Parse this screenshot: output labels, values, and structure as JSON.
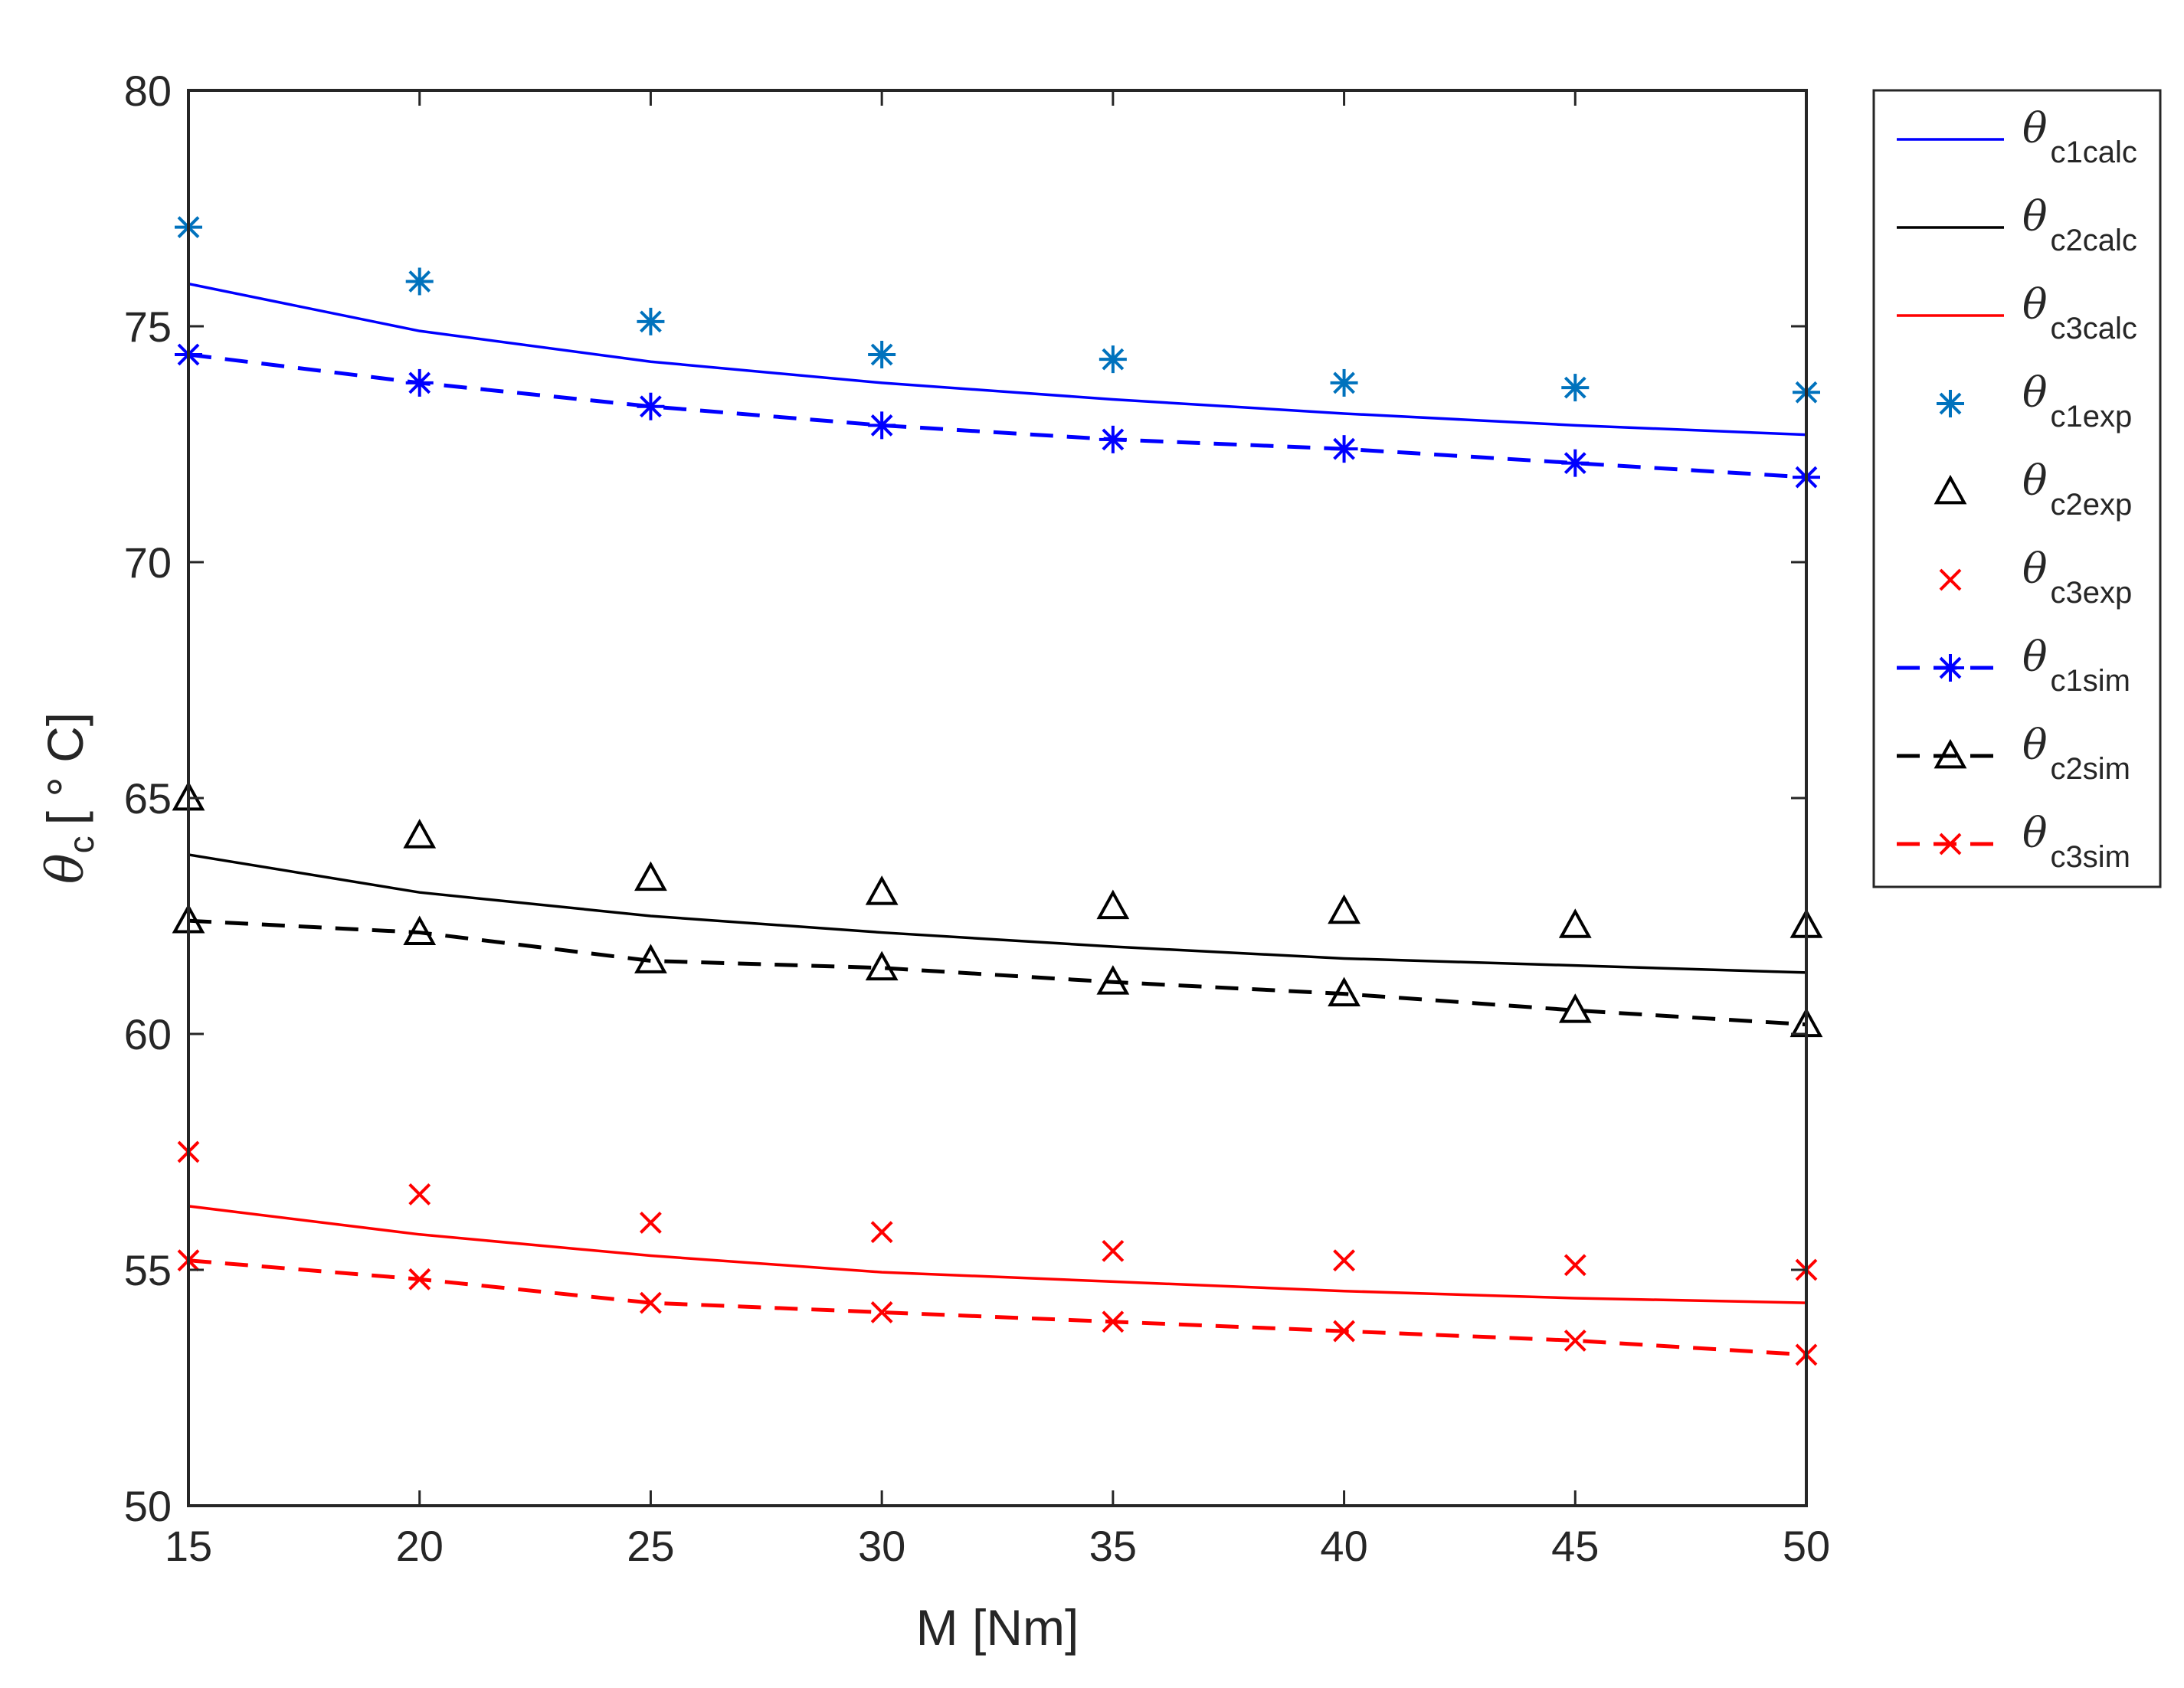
{
  "chart_data": {
    "type": "line",
    "title": "",
    "xlabel": "M [Nm]",
    "ylabel_symbol": "θ",
    "ylabel_sub": "c",
    "ylabel_units": "[ ° C]",
    "xlim": [
      15,
      50
    ],
    "ylim": [
      50,
      80
    ],
    "x_ticks": [
      "15",
      "20",
      "25",
      "30",
      "35",
      "40",
      "45",
      "50"
    ],
    "y_ticks": [
      "50",
      "55",
      "60",
      "65",
      "70",
      "75",
      "80"
    ],
    "x": [
      15,
      20,
      25,
      30,
      35,
      40,
      45,
      50
    ],
    "legend_position": "outside-right",
    "series": [
      {
        "name": "θc1calc",
        "symbol": "θ",
        "sub": "c1calc",
        "color": "#0000ff",
        "line": "solid",
        "marker": "none",
        "values": [
          75.9,
          74.9,
          74.25,
          73.8,
          73.45,
          73.15,
          72.9,
          72.7
        ]
      },
      {
        "name": "θc2calc",
        "symbol": "θ",
        "sub": "c2calc",
        "color": "#000000",
        "line": "solid",
        "marker": "none",
        "values": [
          63.8,
          63.0,
          62.5,
          62.15,
          61.85,
          61.6,
          61.45,
          61.3
        ]
      },
      {
        "name": "θc3calc",
        "symbol": "θ",
        "sub": "c3calc",
        "color": "#ff0000",
        "line": "solid",
        "marker": "none",
        "values": [
          56.35,
          55.75,
          55.3,
          54.95,
          54.75,
          54.55,
          54.4,
          54.3
        ]
      },
      {
        "name": "θc1exp",
        "symbol": "θ",
        "sub": "c1exp",
        "color": "#0072bd",
        "line": "none",
        "marker": "asterisk",
        "values": [
          77.1,
          75.95,
          75.1,
          74.4,
          74.3,
          73.8,
          73.7,
          73.6
        ]
      },
      {
        "name": "θc2exp",
        "symbol": "θ",
        "sub": "c2exp",
        "color": "#000000",
        "line": "none",
        "marker": "triangle",
        "values": [
          65.0,
          64.2,
          63.3,
          63.0,
          62.7,
          62.6,
          62.3,
          62.3
        ]
      },
      {
        "name": "θc3exp",
        "symbol": "θ",
        "sub": "c3exp",
        "color": "#ff0000",
        "line": "none",
        "marker": "x",
        "values": [
          57.5,
          56.6,
          56.0,
          55.8,
          55.4,
          55.2,
          55.1,
          55.0
        ]
      },
      {
        "name": "θc1sim",
        "symbol": "θ",
        "sub": "c1sim",
        "color": "#0000ff",
        "line": "dashed",
        "marker": "asterisk",
        "values": [
          74.4,
          73.8,
          73.3,
          72.9,
          72.6,
          72.4,
          72.1,
          71.8
        ]
      },
      {
        "name": "θc2sim",
        "symbol": "θ",
        "sub": "c2sim",
        "color": "#000000",
        "line": "dashed",
        "marker": "triangle",
        "values": [
          62.4,
          62.15,
          61.55,
          61.4,
          61.1,
          60.85,
          60.5,
          60.2
        ]
      },
      {
        "name": "θc3sim",
        "symbol": "θ",
        "sub": "c3sim",
        "color": "#ff0000",
        "line": "dashed",
        "marker": "x",
        "values": [
          55.2,
          54.8,
          54.3,
          54.1,
          53.9,
          53.7,
          53.5,
          53.2
        ]
      }
    ]
  }
}
